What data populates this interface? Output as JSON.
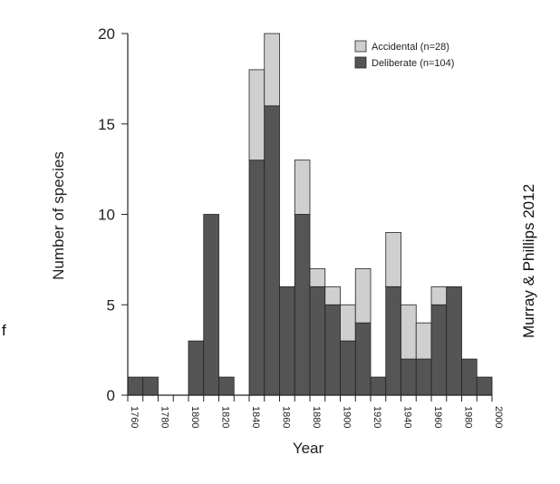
{
  "stray_text": "f",
  "credit": "Murray & Phillips 2012",
  "colors": {
    "accidental": "#cfcfcf",
    "deliberate": "#555555",
    "axis": "#222222"
  },
  "chart_data": {
    "type": "bar",
    "stacked": true,
    "bin_width": 10,
    "x_start": [
      1760,
      1770,
      1780,
      1790,
      1800,
      1810,
      1820,
      1830,
      1840,
      1850,
      1860,
      1870,
      1880,
      1890,
      1900,
      1910,
      1920,
      1930,
      1940,
      1950,
      1960,
      1970,
      1980,
      1990
    ],
    "series": [
      {
        "name": "Deliberate (n=104)",
        "values": [
          1,
          1,
          0,
          0,
          3,
          10,
          1,
          0,
          13,
          16,
          6,
          10,
          6,
          5,
          3,
          4,
          1,
          6,
          2,
          2,
          5,
          6,
          2,
          1
        ]
      },
      {
        "name": "Accidental (n=28)",
        "values": [
          0,
          0,
          0,
          0,
          0,
          0,
          0,
          0,
          5,
          4,
          0,
          3,
          1,
          1,
          2,
          3,
          0,
          3,
          3,
          2,
          1,
          0,
          0,
          0
        ]
      }
    ],
    "xlabel": "Year",
    "ylabel": "Number of species",
    "xlim": [
      1760,
      2000
    ],
    "ylim": [
      0,
      20
    ],
    "x_ticks": [
      "1760",
      "1780",
      "1800",
      "1820",
      "1840",
      "1860",
      "1880",
      "1900",
      "1920",
      "1940",
      "1960",
      "1980",
      "2000"
    ],
    "y_ticks": [
      "0",
      "5",
      "10",
      "15",
      "20"
    ],
    "legend_position": "top-right",
    "grid": false
  }
}
